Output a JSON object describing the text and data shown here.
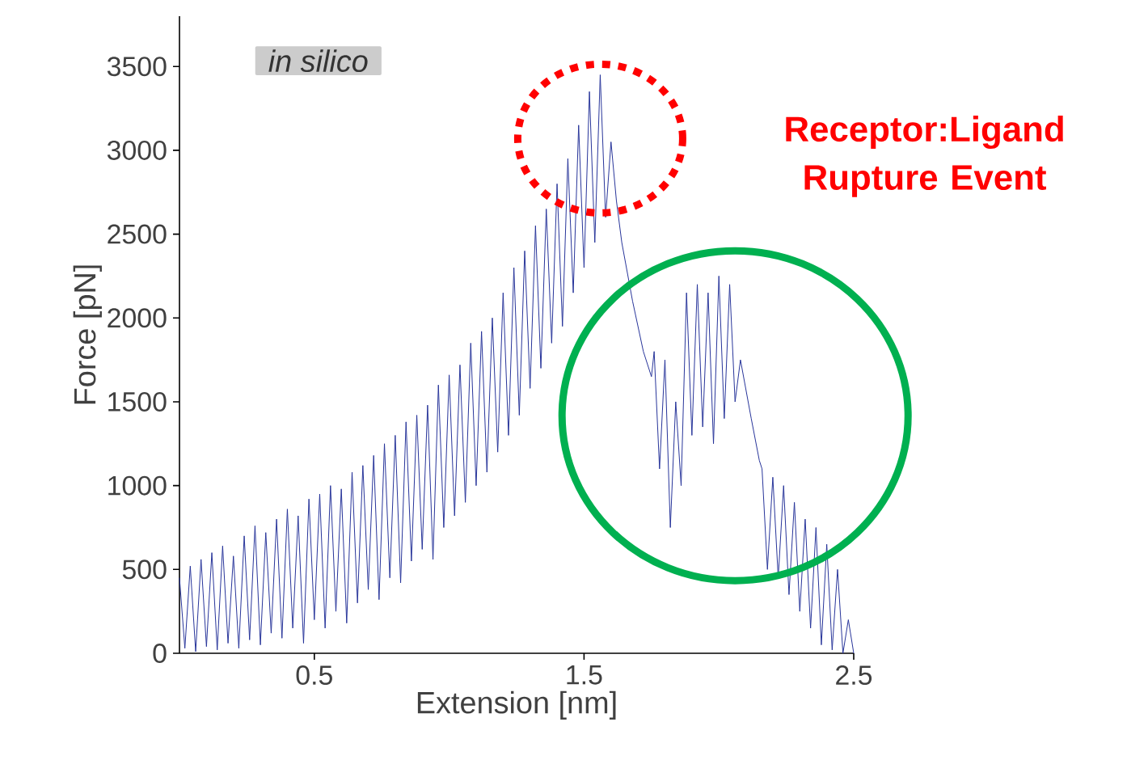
{
  "chart_data": {
    "type": "line",
    "xlabel": "Extension [nm]",
    "ylabel": "Force [pN]",
    "x": [
      0.0,
      0.02,
      0.04,
      0.06,
      0.08,
      0.1,
      0.12,
      0.14,
      0.16,
      0.18,
      0.2,
      0.22,
      0.24,
      0.26,
      0.28,
      0.3,
      0.32,
      0.34,
      0.36,
      0.38,
      0.4,
      0.42,
      0.44,
      0.46,
      0.48,
      0.5,
      0.52,
      0.54,
      0.56,
      0.58,
      0.6,
      0.62,
      0.64,
      0.66,
      0.68,
      0.7,
      0.72,
      0.74,
      0.76,
      0.78,
      0.8,
      0.82,
      0.84,
      0.86,
      0.88,
      0.9,
      0.92,
      0.94,
      0.96,
      0.98,
      1.0,
      1.02,
      1.04,
      1.06,
      1.08,
      1.1,
      1.12,
      1.14,
      1.16,
      1.18,
      1.2,
      1.22,
      1.24,
      1.26,
      1.28,
      1.3,
      1.32,
      1.34,
      1.36,
      1.38,
      1.4,
      1.42,
      1.44,
      1.46,
      1.48,
      1.5,
      1.52,
      1.54,
      1.56,
      1.58,
      1.6,
      1.62,
      1.64,
      1.68,
      1.72,
      1.75,
      1.76,
      1.78,
      1.8,
      1.82,
      1.84,
      1.86,
      1.88,
      1.9,
      1.92,
      1.94,
      1.96,
      1.98,
      2.0,
      2.02,
      2.04,
      2.06,
      2.08,
      2.12,
      2.15,
      2.16,
      2.18,
      2.2,
      2.22,
      2.24,
      2.26,
      2.28,
      2.3,
      2.32,
      2.34,
      2.36,
      2.38,
      2.4,
      2.42,
      2.44,
      2.46,
      2.48,
      2.5
    ],
    "series": [
      {
        "color": "#27349a",
        "values": [
          450,
          30,
          520,
          10,
          560,
          40,
          600,
          20,
          640,
          60,
          580,
          30,
          700,
          80,
          760,
          50,
          720,
          120,
          800,
          90,
          860,
          150,
          820,
          60,
          920,
          200,
          950,
          150,
          1000,
          250,
          980,
          180,
          1080,
          300,
          1120,
          380,
          1180,
          320,
          1250,
          450,
          1300,
          420,
          1380,
          550,
          1420,
          620,
          1480,
          560,
          1600,
          750,
          1660,
          820,
          1720,
          900,
          1850,
          1000,
          1920,
          1080,
          2000,
          1200,
          2150,
          1300,
          2300,
          1420,
          2400,
          1580,
          2550,
          1700,
          2650,
          1850,
          2800,
          1950,
          2950,
          2150,
          3150,
          2300,
          3350,
          2450,
          3450,
          2600,
          3050,
          2700,
          2450,
          2100,
          1800,
          1650,
          1800,
          1100,
          1750,
          750,
          1500,
          1000,
          2150,
          1300,
          2200,
          1350,
          2150,
          1250,
          2250,
          1400,
          2200,
          1500,
          1750,
          1400,
          1150,
          1100,
          500,
          1050,
          450,
          1000,
          350,
          900,
          250,
          800,
          150,
          750,
          50,
          650,
          20,
          500,
          0,
          200,
          0
        ]
      }
    ],
    "xlim": [
      0,
      2.5
    ],
    "ylim": [
      0,
      3800
    ],
    "xticks": [
      0.5,
      1.5,
      2.5
    ],
    "yticks": [
      0,
      500,
      1000,
      1500,
      2000,
      2500,
      3000,
      3500
    ],
    "annotations": [
      "in silico",
      "Receptor:Ligand Rupture Event"
    ]
  }
}
